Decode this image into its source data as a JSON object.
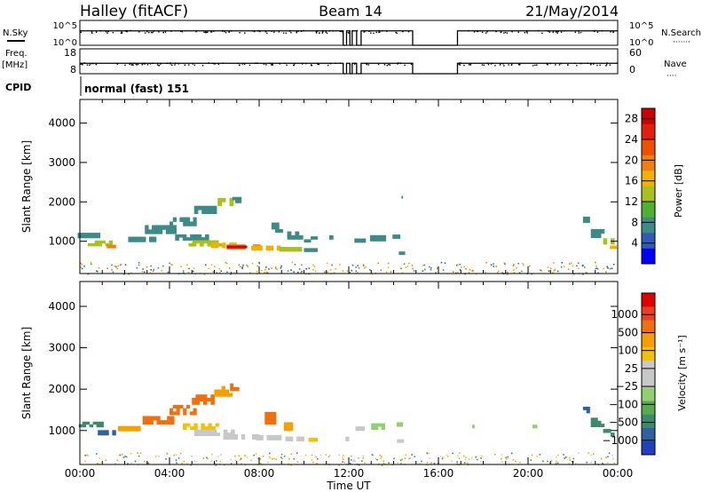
{
  "header": {
    "station": "Halley (fitACF)",
    "beam": "Beam 14",
    "date": "21/May/2014"
  },
  "strip": {
    "nsky_label": "N.Sky",
    "nsearch_label": "N.Search",
    "freq_label": "Freq.",
    "freq_unit": "[MHz]",
    "nave_label": "Nave",
    "cpid_label": "CPID",
    "cpid_text": "normal (fast) 151",
    "noise_ticks_left": [
      "10^5",
      "10^0"
    ],
    "noise_ticks_right": [
      "10^5",
      "10^0"
    ],
    "freq_ticks": [
      "18",
      "8"
    ],
    "nave_ticks": [
      "60",
      "0"
    ]
  },
  "x_axis": {
    "label": "Time UT",
    "ticks": [
      "00:00",
      "04:00",
      "08:00",
      "12:00",
      "16:00",
      "20:00",
      "00:00"
    ]
  },
  "panels": {
    "power": {
      "ylabel": "Slant Range [km]",
      "cbar_label": "Power [dB]"
    },
    "velocity": {
      "ylabel": "Slant Range [km]",
      "cbar_label": "Velocity [m s⁻¹]"
    }
  },
  "chart_data": [
    {
      "type": "line",
      "name": "noise-strip",
      "x_range_hours": [
        0,
        24
      ],
      "data_gaps_hours": [
        [
          11.75,
          11.9
        ],
        [
          12.05,
          12.15
        ],
        [
          12.35,
          12.55
        ],
        [
          14.85,
          16.85
        ]
      ],
      "nsky_level": "10^5",
      "freq_level_mhz": 12
    },
    {
      "type": "heatmap",
      "name": "power",
      "xlim_hours": [
        0,
        24
      ],
      "ylim_km": [
        180,
        4600
      ],
      "yticks": [
        1000,
        2000,
        3000,
        4000
      ],
      "colorbar": {
        "ticks": [
          4,
          8,
          12,
          16,
          20,
          24,
          28
        ],
        "colors": [
          "#0000ff",
          "#2e5ab8",
          "#3e8a86",
          "#50b030",
          "#a8c020",
          "#f2b000",
          "#f08010",
          "#ee5000",
          "#e02010",
          "#cc0000"
        ],
        "range": [
          0,
          30
        ]
      },
      "cells": [
        {
          "t": 0.4,
          "r": 1150,
          "dt": 1.0,
          "dr": 130,
          "v": 8
        },
        {
          "t": 0.9,
          "r": 950,
          "dt": 1.1,
          "dr": 140,
          "v": 12
        },
        {
          "t": 1.4,
          "r": 870,
          "dt": 0.4,
          "dr": 80,
          "v": 18
        },
        {
          "t": 2.7,
          "r": 1050,
          "dt": 1.4,
          "dr": 130,
          "v": 8
        },
        {
          "t": 3.6,
          "r": 1300,
          "dt": 1.4,
          "dr": 220,
          "v": 8
        },
        {
          "t": 4.6,
          "r": 1500,
          "dt": 1.2,
          "dr": 220,
          "v": 8
        },
        {
          "t": 5.6,
          "r": 1800,
          "dt": 1.0,
          "dr": 200,
          "v": 8
        },
        {
          "t": 6.5,
          "r": 2000,
          "dt": 0.7,
          "dr": 200,
          "v": 12
        },
        {
          "t": 7.0,
          "r": 2050,
          "dt": 0.4,
          "dr": 150,
          "v": 8
        },
        {
          "t": 5.0,
          "r": 1100,
          "dt": 1.5,
          "dr": 150,
          "v": 8
        },
        {
          "t": 5.6,
          "r": 950,
          "dt": 1.5,
          "dr": 150,
          "v": 12
        },
        {
          "t": 6.5,
          "r": 900,
          "dt": 1.3,
          "dr": 130,
          "v": 16
        },
        {
          "t": 7.3,
          "r": 860,
          "dt": 1.5,
          "dr": 120,
          "v": 20
        },
        {
          "t": 7.0,
          "r": 860,
          "dt": 0.9,
          "dr": 60,
          "v": 28
        },
        {
          "t": 8.3,
          "r": 830,
          "dt": 1.3,
          "dr": 120,
          "v": 16
        },
        {
          "t": 9.4,
          "r": 800,
          "dt": 1.0,
          "dr": 110,
          "v": 12
        },
        {
          "t": 10.3,
          "r": 780,
          "dt": 0.6,
          "dr": 90,
          "v": 8
        },
        {
          "t": 8.8,
          "r": 1350,
          "dt": 0.5,
          "dr": 250,
          "v": 8
        },
        {
          "t": 9.6,
          "r": 1150,
          "dt": 0.7,
          "dr": 200,
          "v": 8
        },
        {
          "t": 10.3,
          "r": 1050,
          "dt": 0.6,
          "dr": 150,
          "v": 8
        },
        {
          "t": 11.3,
          "r": 1100,
          "dt": 0.35,
          "dr": 100,
          "v": 8
        },
        {
          "t": 12.5,
          "r": 1020,
          "dt": 0.5,
          "dr": 100,
          "v": 8
        },
        {
          "t": 13.3,
          "r": 1080,
          "dt": 0.7,
          "dr": 150,
          "v": 8
        },
        {
          "t": 14.2,
          "r": 1120,
          "dt": 0.5,
          "dr": 100,
          "v": 8
        },
        {
          "t": 14.3,
          "r": 700,
          "dt": 0.4,
          "dr": 80,
          "v": 8
        },
        {
          "t": 14.4,
          "r": 2120,
          "dt": 0.1,
          "dr": 60,
          "v": 8
        },
        {
          "t": 17.0,
          "r": 1100,
          "dt": 0.15,
          "dr": 60,
          "v": 8
        },
        {
          "t": 22.6,
          "r": 1550,
          "dt": 0.3,
          "dr": 150,
          "v": 8
        },
        {
          "t": 23.1,
          "r": 1200,
          "dt": 0.6,
          "dr": 220,
          "v": 8
        },
        {
          "t": 23.6,
          "r": 1000,
          "dt": 0.5,
          "dr": 150,
          "v": 12
        },
        {
          "t": 23.8,
          "r": 850,
          "dt": 0.3,
          "dr": 80,
          "v": 16
        }
      ]
    },
    {
      "type": "heatmap",
      "name": "velocity",
      "xlim_hours": [
        0,
        24
      ],
      "ylim_km": [
        180,
        4600
      ],
      "yticks": [
        1000,
        2000,
        3000,
        4000
      ],
      "colorbar": {
        "ticks": [
          "1000",
          "500",
          "100",
          "25",
          "−25",
          "−100",
          "−500",
          "−1000"
        ],
        "colors": [
          "#2040c0",
          "#3060a0",
          "#3c8a6e",
          "#5aaa50",
          "#90d070",
          "#c8c8c8",
          "#c8c8c8",
          "#f5c000",
          "#f5a000",
          "#f07010",
          "#e84020",
          "#e00000"
        ]
      },
      "cells": [
        {
          "t": 0.5,
          "r": 1150,
          "dt": 1.1,
          "dr": 130,
          "v": "#3c8a6e"
        },
        {
          "t": 1.2,
          "r": 950,
          "dt": 0.8,
          "dr": 120,
          "v": "#3060a0"
        },
        {
          "t": 2.2,
          "r": 1050,
          "dt": 1.0,
          "dr": 120,
          "v": "#f5a000"
        },
        {
          "t": 3.5,
          "r": 1250,
          "dt": 1.4,
          "dr": 200,
          "v": "#f07010"
        },
        {
          "t": 4.6,
          "r": 1500,
          "dt": 1.2,
          "dr": 240,
          "v": "#f07010"
        },
        {
          "t": 5.5,
          "r": 1750,
          "dt": 1.0,
          "dr": 240,
          "v": "#f07010"
        },
        {
          "t": 6.4,
          "r": 1950,
          "dt": 0.8,
          "dr": 250,
          "v": "#f5a000"
        },
        {
          "t": 6.9,
          "r": 2050,
          "dt": 0.4,
          "dr": 180,
          "v": "#f07010"
        },
        {
          "t": 5.4,
          "r": 1100,
          "dt": 1.6,
          "dr": 150,
          "v": "#f5c000"
        },
        {
          "t": 6.0,
          "r": 950,
          "dt": 1.8,
          "dr": 150,
          "v": "#c8c8c8"
        },
        {
          "t": 7.2,
          "r": 850,
          "dt": 1.6,
          "dr": 120,
          "v": "#c8c8c8"
        },
        {
          "t": 8.5,
          "r": 830,
          "dt": 1.3,
          "dr": 120,
          "v": "#c8c8c8"
        },
        {
          "t": 9.5,
          "r": 800,
          "dt": 1.0,
          "dr": 110,
          "v": "#c8c8c8"
        },
        {
          "t": 8.5,
          "r": 1300,
          "dt": 0.5,
          "dr": 300,
          "v": "#f07010"
        },
        {
          "t": 9.3,
          "r": 1100,
          "dt": 0.4,
          "dr": 200,
          "v": "#f5a000"
        },
        {
          "t": 10.4,
          "r": 780,
          "dt": 0.4,
          "dr": 90,
          "v": "#f5c000"
        },
        {
          "t": 12.5,
          "r": 1050,
          "dt": 0.4,
          "dr": 100,
          "v": "#c8c8c8"
        },
        {
          "t": 13.3,
          "r": 1100,
          "dt": 0.6,
          "dr": 150,
          "v": "#90d070"
        },
        {
          "t": 14.2,
          "r": 1150,
          "dt": 0.4,
          "dr": 100,
          "v": "#90d070"
        },
        {
          "t": 12.0,
          "r": 800,
          "dt": 0.3,
          "dr": 100,
          "v": "#c8c8c8"
        },
        {
          "t": 14.3,
          "r": 750,
          "dt": 0.3,
          "dr": 80,
          "v": "#c8c8c8"
        },
        {
          "t": 17.5,
          "r": 1100,
          "dt": 0.2,
          "dr": 80,
          "v": "#90d070"
        },
        {
          "t": 20.3,
          "r": 1100,
          "dt": 0.2,
          "dr": 80,
          "v": "#90d070"
        },
        {
          "t": 22.6,
          "r": 1500,
          "dt": 0.3,
          "dr": 150,
          "v": "#3060a0"
        },
        {
          "t": 23.1,
          "r": 1200,
          "dt": 0.6,
          "dr": 220,
          "v": "#3c8a6e"
        },
        {
          "t": 23.6,
          "r": 950,
          "dt": 0.5,
          "dr": 180,
          "v": "#3c8a6e"
        }
      ]
    }
  ]
}
